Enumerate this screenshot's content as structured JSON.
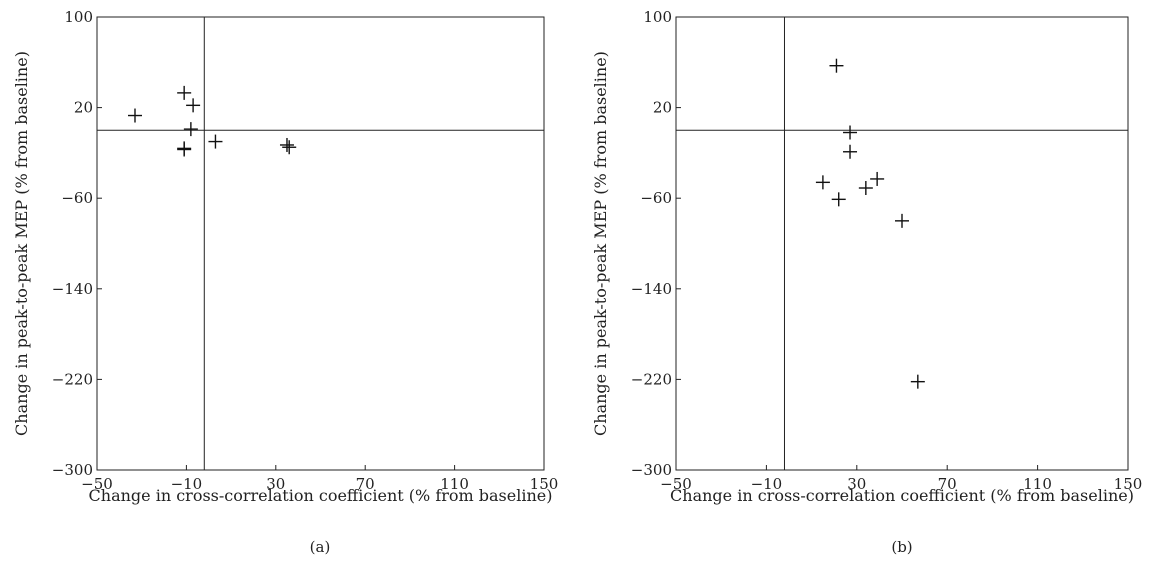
{
  "chart_data": [
    {
      "type": "scatter",
      "panel_label": "(a)",
      "xlabel": "Change in cross-correlation coefficient (% from baseline)",
      "ylabel": "Change in peak-to-peak MEP (% from baseline)",
      "xlim": [
        -50,
        150
      ],
      "ylim": [
        -300,
        100
      ],
      "xticks": [
        -50,
        -10,
        30,
        70,
        110,
        150
      ],
      "yticks": [
        -300,
        -220,
        -140,
        -60,
        20,
        100
      ],
      "marker": "plus",
      "reference_lines": {
        "x": -2,
        "y": 0
      },
      "series": [
        {
          "points": [
            {
              "x": -33,
              "y": 13
            },
            {
              "x": -11,
              "y": 33
            },
            {
              "x": -7,
              "y": 22
            },
            {
              "x": -8,
              "y": 1
            },
            {
              "x": -11,
              "y": -16
            },
            {
              "x": -11,
              "y": -17
            },
            {
              "x": 3,
              "y": -10
            },
            {
              "x": 35,
              "y": -13
            },
            {
              "x": 36,
              "y": -15
            }
          ]
        }
      ]
    },
    {
      "type": "scatter",
      "panel_label": "(b)",
      "xlabel": "Change in cross-correlation coefficient (% from baseline)",
      "ylabel": "Change in peak-to-peak MEP (% from baseline)",
      "xlim": [
        -50,
        150
      ],
      "ylim": [
        -300,
        100
      ],
      "xticks": [
        -50,
        -10,
        30,
        70,
        110,
        150
      ],
      "yticks": [
        -300,
        -220,
        -140,
        -60,
        20,
        100
      ],
      "marker": "plus",
      "reference_lines": {
        "x": -2,
        "y": 0
      },
      "series": [
        {
          "points": [
            {
              "x": 21,
              "y": 57
            },
            {
              "x": 27,
              "y": -2
            },
            {
              "x": 27,
              "y": -19
            },
            {
              "x": 15,
              "y": -46
            },
            {
              "x": 22,
              "y": -61
            },
            {
              "x": 34,
              "y": -51
            },
            {
              "x": 39,
              "y": -43
            },
            {
              "x": 50,
              "y": -80
            },
            {
              "x": 57,
              "y": -222
            }
          ]
        }
      ]
    }
  ]
}
